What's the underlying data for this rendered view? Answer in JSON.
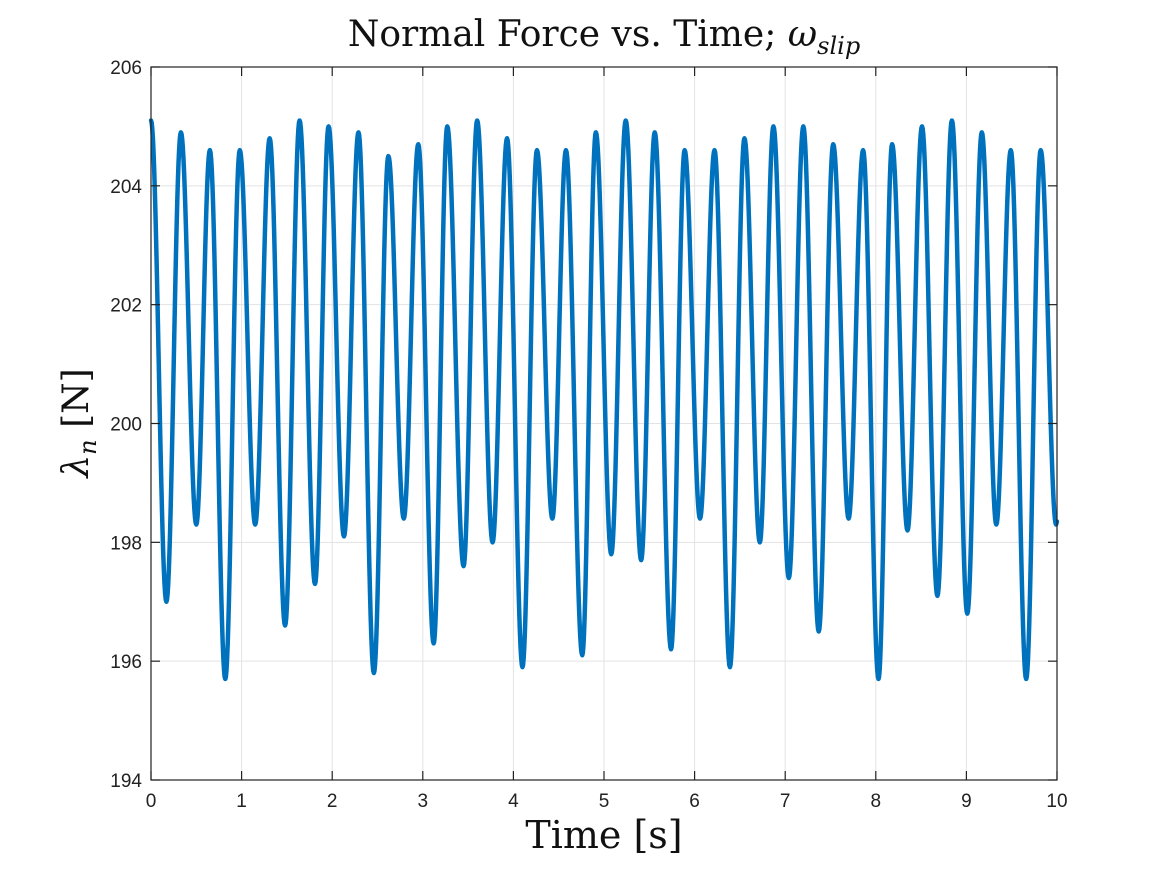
{
  "chart_data": {
    "type": "line",
    "title": "Normal Force vs. Time; ",
    "title_math": "ω",
    "title_math_sub": "slip",
    "xlabel": "Time [s]",
    "ylabel": "λ",
    "ylabel_sub": "n",
    "ylabel_unit": " [N]",
    "xlim": [
      0,
      10
    ],
    "ylim": [
      194,
      206
    ],
    "xticks": [
      "0",
      "1",
      "2",
      "3",
      "4",
      "5",
      "6",
      "7",
      "8",
      "9",
      "10"
    ],
    "yticks": [
      "194",
      "196",
      "198",
      "200",
      "202",
      "204",
      "206"
    ],
    "grid": true,
    "line_color": "#0072BD",
    "series": [
      {
        "peaks": [
          [
            0.0,
            205.1
          ],
          [
            0.33,
            204.9
          ],
          [
            0.65,
            204.6
          ],
          [
            0.98,
            204.6
          ],
          [
            1.31,
            204.8
          ],
          [
            1.64,
            205.1
          ],
          [
            1.96,
            205.0
          ],
          [
            2.29,
            204.9
          ],
          [
            2.62,
            204.5
          ],
          [
            2.95,
            204.7
          ],
          [
            3.27,
            205.0
          ],
          [
            3.6,
            205.1
          ],
          [
            3.93,
            204.8
          ],
          [
            4.26,
            204.6
          ],
          [
            4.58,
            204.6
          ],
          [
            4.91,
            204.9
          ],
          [
            5.24,
            205.1
          ],
          [
            5.56,
            204.9
          ],
          [
            5.89,
            204.6
          ],
          [
            6.22,
            204.6
          ],
          [
            6.55,
            204.8
          ],
          [
            6.87,
            205.0
          ],
          [
            7.2,
            205.0
          ],
          [
            7.53,
            204.7
          ],
          [
            7.86,
            204.6
          ],
          [
            8.18,
            204.7
          ],
          [
            8.51,
            205.0
          ],
          [
            8.84,
            205.1
          ],
          [
            9.17,
            204.9
          ],
          [
            9.49,
            204.6
          ],
          [
            9.82,
            204.6
          ]
        ],
        "troughs": [
          [
            0.17,
            197.0
          ],
          [
            0.5,
            198.3
          ],
          [
            0.82,
            195.7
          ],
          [
            1.15,
            198.3
          ],
          [
            1.48,
            196.6
          ],
          [
            1.81,
            197.3
          ],
          [
            2.13,
            198.1
          ],
          [
            2.46,
            195.8
          ],
          [
            2.79,
            198.4
          ],
          [
            3.12,
            196.3
          ],
          [
            3.45,
            197.6
          ],
          [
            3.77,
            198.0
          ],
          [
            4.1,
            195.9
          ],
          [
            4.43,
            198.4
          ],
          [
            4.76,
            196.1
          ],
          [
            5.08,
            197.8
          ],
          [
            5.41,
            197.7
          ],
          [
            5.74,
            196.2
          ],
          [
            6.06,
            198.4
          ],
          [
            6.39,
            195.9
          ],
          [
            6.72,
            198.0
          ],
          [
            7.04,
            197.4
          ],
          [
            7.37,
            196.5
          ],
          [
            7.7,
            198.4
          ],
          [
            8.03,
            195.7
          ],
          [
            8.35,
            198.2
          ],
          [
            8.68,
            197.1
          ],
          [
            9.01,
            196.8
          ],
          [
            9.33,
            198.3
          ],
          [
            9.66,
            195.7
          ],
          [
            9.99,
            198.3
          ]
        ]
      }
    ]
  }
}
